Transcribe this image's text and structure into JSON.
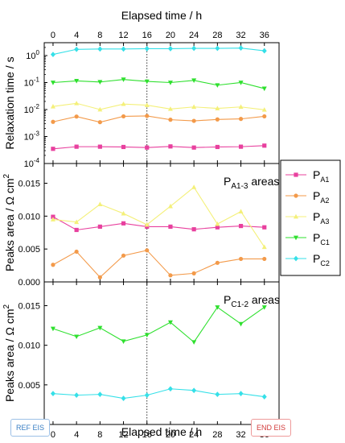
{
  "chart_data": {
    "type": "line",
    "x_top_label": "Elapsed time / h",
    "x_bottom_label": "Elapsed time / h",
    "x_ticks": [
      0,
      4,
      8,
      12,
      16,
      20,
      24,
      28,
      32,
      36
    ],
    "xlim": [
      -1.5,
      38.5
    ],
    "reference_line_x": 16,
    "panels": [
      {
        "id": "relaxation",
        "ylabel": "Relaxation time / s",
        "yscale": "log",
        "ylim": [
          0.0001,
          3
        ],
        "y_ticks": [
          {
            "v": 0.0001,
            "base": "10",
            "exp": "-4"
          },
          {
            "v": 0.001,
            "base": "10",
            "exp": "-3"
          },
          {
            "v": 0.01,
            "base": "10",
            "exp": "-2"
          },
          {
            "v": 0.1,
            "base": "10",
            "exp": "-1"
          },
          {
            "v": 1,
            "base": "10",
            "exp": "0"
          }
        ],
        "series": [
          {
            "key": "PA1",
            "x": [
              0,
              4,
              8,
              12,
              16,
              20,
              24,
              28,
              32,
              36
            ],
            "y": [
              0.00035,
              0.00042,
              0.00042,
              0.00041,
              0.00039,
              0.00043,
              0.00039,
              0.00041,
              0.00042,
              0.00046
            ]
          },
          {
            "key": "PA2",
            "x": [
              0,
              4,
              8,
              12,
              16,
              20,
              24,
              28,
              32,
              36
            ],
            "y": [
              0.0035,
              0.0055,
              0.0034,
              0.0056,
              0.0058,
              0.0042,
              0.0038,
              0.0043,
              0.0045,
              0.0056
            ]
          },
          {
            "key": "PA3",
            "x": [
              0,
              4,
              8,
              12,
              16,
              20,
              24,
              28,
              32,
              36
            ],
            "y": [
              0.013,
              0.017,
              0.01,
              0.016,
              0.0145,
              0.0105,
              0.0125,
              0.011,
              0.0125,
              0.0098
            ]
          },
          {
            "key": "PC1",
            "x": [
              0,
              4,
              8,
              12,
              16,
              20,
              24,
              28,
              32,
              36
            ],
            "y": [
              0.1,
              0.115,
              0.105,
              0.13,
              0.11,
              0.1,
              0.12,
              0.08,
              0.1,
              0.06
            ]
          },
          {
            "key": "PC2",
            "x": [
              0,
              4,
              8,
              12,
              16,
              20,
              24,
              28,
              32,
              36
            ],
            "y": [
              1.1,
              1.7,
              1.75,
              1.75,
              1.8,
              1.8,
              1.85,
              1.85,
              1.9,
              1.5
            ]
          }
        ]
      },
      {
        "id": "pa-areas",
        "ylabel": "Peaks area / Ω cm",
        "ylabel_sup": "2",
        "annotation": {
          "main": "P",
          "sub": "A1-3",
          "tail": " areas"
        },
        "yscale": "linear",
        "ylim": [
          0,
          0.018
        ],
        "y_ticks": [
          {
            "v": 0,
            "label": "0.000"
          },
          {
            "v": 0.005,
            "label": "0.005"
          },
          {
            "v": 0.01,
            "label": "0.010"
          },
          {
            "v": 0.015,
            "label": "0.015"
          }
        ],
        "series": [
          {
            "key": "PA1",
            "x": [
              0,
              4,
              8,
              12,
              16,
              20,
              24,
              28,
              32,
              36
            ],
            "y": [
              0.0099,
              0.0079,
              0.0084,
              0.0089,
              0.0084,
              0.0084,
              0.008,
              0.0083,
              0.0085,
              0.0083
            ]
          },
          {
            "key": "PA2",
            "x": [
              0,
              4,
              8,
              12,
              16,
              20,
              24,
              28,
              32,
              36
            ],
            "y": [
              0.0026,
              0.0046,
              0.0007,
              0.004,
              0.0048,
              0.001,
              0.0013,
              0.0029,
              0.0035,
              0.0035
            ]
          },
          {
            "key": "PA3",
            "x": [
              0,
              4,
              8,
              12,
              16,
              20,
              24,
              28,
              32,
              36
            ],
            "y": [
              0.0095,
              0.0091,
              0.0118,
              0.0104,
              0.0087,
              0.0115,
              0.0144,
              0.0088,
              0.0107,
              0.0053
            ]
          }
        ]
      },
      {
        "id": "pc-areas",
        "ylabel": "Peaks area / Ω cm",
        "ylabel_sup": "2",
        "annotation": {
          "main": "P",
          "sub": "C1-2",
          "tail": " areas"
        },
        "yscale": "linear",
        "ylim": [
          0,
          0.018
        ],
        "y_ticks": [
          {
            "v": 0,
            "label": "0.000"
          },
          {
            "v": 0.005,
            "label": "0.005"
          },
          {
            "v": 0.01,
            "label": "0.010"
          },
          {
            "v": 0.015,
            "label": "0.015"
          }
        ],
        "series": [
          {
            "key": "PC1",
            "x": [
              0,
              4,
              8,
              12,
              16,
              20,
              24,
              28,
              32,
              36
            ],
            "y": [
              0.0121,
              0.0111,
              0.0122,
              0.0105,
              0.0113,
              0.0129,
              0.0104,
              0.0148,
              0.0127,
              0.0148
            ]
          },
          {
            "key": "PC2",
            "x": [
              0,
              4,
              8,
              12,
              16,
              20,
              24,
              28,
              32,
              36
            ],
            "y": [
              0.0039,
              0.0037,
              0.0038,
              0.0033,
              0.0037,
              0.0045,
              0.0043,
              0.0038,
              0.0039,
              0.0035
            ]
          }
        ]
      }
    ],
    "legend": {
      "placement": "right-middle",
      "entries": [
        {
          "key": "PA1",
          "main": "P",
          "sub": "A1",
          "color": "#e8409e",
          "marker": "square"
        },
        {
          "key": "PA2",
          "main": "P",
          "sub": "A2",
          "color": "#f39a4a",
          "marker": "circle"
        },
        {
          "key": "PA3",
          "main": "P",
          "sub": "A3",
          "color": "#f4f07a",
          "marker": "triangle-up"
        },
        {
          "key": "PC1",
          "main": "P",
          "sub": "C1",
          "color": "#2ee02e",
          "marker": "triangle-down"
        },
        {
          "key": "PC2",
          "main": "P",
          "sub": "C2",
          "color": "#35e0e8",
          "marker": "diamond"
        }
      ]
    }
  },
  "tags": {
    "ref": {
      "label": "REF EIS",
      "color": "#3a7fc4",
      "border": "#9cc0e6"
    },
    "end": {
      "label": "END EIS",
      "color": "#d23b3b",
      "border": "#ee9a9a"
    }
  }
}
